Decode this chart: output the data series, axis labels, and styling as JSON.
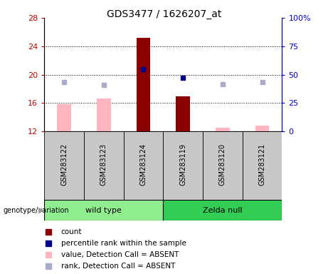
{
  "title": "GDS3477 / 1626207_at",
  "samples": [
    "GSM283122",
    "GSM283123",
    "GSM283124",
    "GSM283119",
    "GSM283120",
    "GSM283121"
  ],
  "ylim_left": [
    12,
    28
  ],
  "ylim_right": [
    0,
    100
  ],
  "yticks_left": [
    12,
    16,
    20,
    24,
    28
  ],
  "yticks_right": [
    0,
    25,
    50,
    75,
    100
  ],
  "ytick_labels_right": [
    "0",
    "25",
    "50",
    "75",
    "100%"
  ],
  "bar_color_present": "#8b0000",
  "bar_color_absent": "#ffb6c1",
  "dot_color_present": "#00008b",
  "dot_color_absent": "#aaaacc",
  "bar_width": 0.35,
  "count_values": [
    null,
    null,
    25.2,
    17.0,
    null,
    null
  ],
  "count_absent_values": [
    15.8,
    16.7,
    null,
    null,
    12.5,
    12.8
  ],
  "rank_present": [
    null,
    null,
    20.8,
    19.6,
    null,
    null
  ],
  "rank_absent": [
    19.0,
    18.6,
    null,
    null,
    18.7,
    19.0
  ],
  "left_label_color": "#cc0000",
  "right_label_color": "#0000cc",
  "grid_dotted_at": [
    16,
    20,
    24
  ],
  "group_wt_color": "#90ee90",
  "group_zn_color": "#33cc55",
  "sample_box_color": "#c8c8c8",
  "legend_items": [
    "count",
    "percentile rank within the sample",
    "value, Detection Call = ABSENT",
    "rank, Detection Call = ABSENT"
  ],
  "legend_colors": [
    "#8b0000",
    "#00008b",
    "#ffb6c1",
    "#aaaacc"
  ]
}
